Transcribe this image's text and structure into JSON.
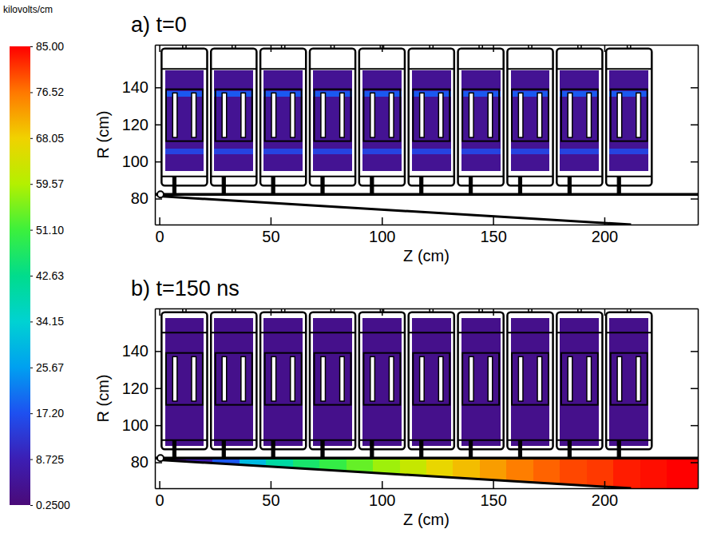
{
  "chart_data": {
    "type": "heatmap",
    "colorbar": {
      "label": "kilovolts/cm",
      "range": [
        0.25,
        85
      ],
      "ticks": [
        {
          "value": 0.25,
          "label": "0.2500"
        },
        {
          "value": 8.725,
          "label": "8.725"
        },
        {
          "value": 17.2,
          "label": "17.20"
        },
        {
          "value": 25.67,
          "label": "25.67"
        },
        {
          "value": 34.15,
          "label": "34.15"
        },
        {
          "value": 42.63,
          "label": "42.63"
        },
        {
          "value": 51.1,
          "label": "51.10"
        },
        {
          "value": 59.57,
          "label": "59.57"
        },
        {
          "value": 68.05,
          "label": "68.05"
        },
        {
          "value": 76.52,
          "label": "76.52"
        },
        {
          "value": 85,
          "label": "85.00"
        }
      ],
      "colors": [
        "#4a0a78",
        "#3c1eb4",
        "#1e50f0",
        "#00a0f0",
        "#00d2d2",
        "#00dc8c",
        "#3cf03c",
        "#b4f000",
        "#f0d200",
        "#ff7800",
        "#ff0000"
      ]
    },
    "panels": [
      {
        "type": "heatmap",
        "title": "a) t=0",
        "x_label": "Z (cm)",
        "y_label": "R (cm)",
        "xlim": [
          -2,
          242
        ],
        "ylim": [
          66,
          163
        ],
        "xticks": [
          0,
          50,
          100,
          150,
          200
        ],
        "yticks": [
          80,
          100,
          120,
          140
        ],
        "field": [
          {
            "z": [
              2.5,
              20
            ],
            "r": [
              95,
              149
            ],
            "value": 4
          },
          {
            "z": [
              2.5,
              20
            ],
            "r": [
              104,
              107
            ],
            "value": 15
          },
          {
            "z": [
              2.5,
              20
            ],
            "r": [
              135,
              138
            ],
            "value": 18
          },
          {
            "z": [
              24.7,
              42.2
            ],
            "r": [
              95,
              149
            ],
            "value": 4
          },
          {
            "z": [
              24.7,
              42.2
            ],
            "r": [
              104,
              107
            ],
            "value": 15
          },
          {
            "z": [
              24.7,
              42.2
            ],
            "r": [
              135,
              138
            ],
            "value": 18
          },
          {
            "z": [
              46.9,
              64.4
            ],
            "r": [
              95,
              149
            ],
            "value": 4
          },
          {
            "z": [
              46.9,
              64.4
            ],
            "r": [
              104,
              107
            ],
            "value": 15
          },
          {
            "z": [
              46.9,
              64.4
            ],
            "r": [
              135,
              138
            ],
            "value": 18
          },
          {
            "z": [
              69.1,
              86.6
            ],
            "r": [
              95,
              149
            ],
            "value": 4
          },
          {
            "z": [
              69.1,
              86.6
            ],
            "r": [
              104,
              107
            ],
            "value": 15
          },
          {
            "z": [
              69.1,
              86.6
            ],
            "r": [
              135,
              138
            ],
            "value": 18
          },
          {
            "z": [
              91.3,
              108.8
            ],
            "r": [
              95,
              149
            ],
            "value": 4
          },
          {
            "z": [
              91.3,
              108.8
            ],
            "r": [
              104,
              107
            ],
            "value": 15
          },
          {
            "z": [
              91.3,
              108.8
            ],
            "r": [
              135,
              138
            ],
            "value": 18
          },
          {
            "z": [
              113.5,
              131
            ],
            "r": [
              95,
              149
            ],
            "value": 4
          },
          {
            "z": [
              113.5,
              131
            ],
            "r": [
              104,
              107
            ],
            "value": 15
          },
          {
            "z": [
              113.5,
              131
            ],
            "r": [
              135,
              138
            ],
            "value": 18
          },
          {
            "z": [
              135.7,
              153.2
            ],
            "r": [
              95,
              149
            ],
            "value": 4
          },
          {
            "z": [
              135.7,
              153.2
            ],
            "r": [
              104,
              107
            ],
            "value": 15
          },
          {
            "z": [
              135.7,
              153.2
            ],
            "r": [
              135,
              138
            ],
            "value": 18
          },
          {
            "z": [
              157.9,
              175.4
            ],
            "r": [
              95,
              149
            ],
            "value": 4
          },
          {
            "z": [
              157.9,
              175.4
            ],
            "r": [
              104,
              107
            ],
            "value": 15
          },
          {
            "z": [
              157.9,
              175.4
            ],
            "r": [
              135,
              138
            ],
            "value": 18
          },
          {
            "z": [
              180.1,
              197.6
            ],
            "r": [
              95,
              149
            ],
            "value": 4
          },
          {
            "z": [
              180.1,
              197.6
            ],
            "r": [
              104,
              107
            ],
            "value": 15
          },
          {
            "z": [
              180.1,
              197.6
            ],
            "r": [
              135,
              138
            ],
            "value": 18
          },
          {
            "z": [
              202.3,
              219.8
            ],
            "r": [
              95,
              149
            ],
            "value": 4
          },
          {
            "z": [
              202.3,
              219.8
            ],
            "r": [
              104,
              107
            ],
            "value": 15
          },
          {
            "z": [
              202.3,
              219.8
            ],
            "r": [
              135,
              138
            ],
            "value": 18
          }
        ]
      },
      {
        "type": "heatmap",
        "title": "b) t=150 ns",
        "x_label": "Z (cm)",
        "y_label": "R (cm)",
        "xlim": [
          -2,
          242
        ],
        "ylim": [
          66,
          163
        ],
        "xticks": [
          0,
          50,
          100,
          150,
          200
        ],
        "yticks": [
          80,
          100,
          120,
          140
        ],
        "field": [
          {
            "z": [
              2.5,
              20
            ],
            "r": [
              89,
              158
            ],
            "value": 3
          },
          {
            "z": [
              24.7,
              42.2
            ],
            "r": [
              89,
              158
            ],
            "value": 3
          },
          {
            "z": [
              46.9,
              64.4
            ],
            "r": [
              89,
              158
            ],
            "value": 3
          },
          {
            "z": [
              69.1,
              86.6
            ],
            "r": [
              89,
              158
            ],
            "value": 3
          },
          {
            "z": [
              91.3,
              108.8
            ],
            "r": [
              89,
              158
            ],
            "value": 3
          },
          {
            "z": [
              113.5,
              131
            ],
            "r": [
              89,
              158
            ],
            "value": 3
          },
          {
            "z": [
              135.7,
              153.2
            ],
            "r": [
              89,
              158
            ],
            "value": 3
          },
          {
            "z": [
              157.9,
              175.4
            ],
            "r": [
              89,
              158
            ],
            "value": 3
          },
          {
            "z": [
              180.1,
              197.6
            ],
            "r": [
              89,
              158
            ],
            "value": 3
          },
          {
            "z": [
              202.3,
              219.8
            ],
            "r": [
              89,
              158
            ],
            "value": 3
          },
          {
            "z": [
              0,
              12
            ],
            "r": [
              66,
              82
            ],
            "value": 3
          },
          {
            "z": [
              12,
              24
            ],
            "r": [
              66,
              82
            ],
            "value": 8
          },
          {
            "z": [
              24,
              36
            ],
            "r": [
              66,
              82
            ],
            "value": 18
          },
          {
            "z": [
              36,
              48
            ],
            "r": [
              66,
              82
            ],
            "value": 30
          },
          {
            "z": [
              48,
              60
            ],
            "r": [
              66,
              82
            ],
            "value": 40
          },
          {
            "z": [
              60,
              72
            ],
            "r": [
              66,
              82
            ],
            "value": 46
          },
          {
            "z": [
              72,
              84
            ],
            "r": [
              66,
              82
            ],
            "value": 50
          },
          {
            "z": [
              84,
              96
            ],
            "r": [
              66,
              82
            ],
            "value": 54
          },
          {
            "z": [
              96,
              108
            ],
            "r": [
              66,
              82
            ],
            "value": 58
          },
          {
            "z": [
              108,
              120
            ],
            "r": [
              66,
              82
            ],
            "value": 62
          },
          {
            "z": [
              120,
              132
            ],
            "r": [
              66,
              82
            ],
            "value": 67
          },
          {
            "z": [
              132,
              144
            ],
            "r": [
              66,
              82
            ],
            "value": 70
          },
          {
            "z": [
              144,
              156
            ],
            "r": [
              66,
              82
            ],
            "value": 73
          },
          {
            "z": [
              156,
              168
            ],
            "r": [
              66,
              82
            ],
            "value": 76
          },
          {
            "z": [
              168,
              180
            ],
            "r": [
              66,
              82
            ],
            "value": 78
          },
          {
            "z": [
              180,
              192
            ],
            "r": [
              66,
              82
            ],
            "value": 80
          },
          {
            "z": [
              192,
              204
            ],
            "r": [
              66,
              82
            ],
            "value": 81
          },
          {
            "z": [
              204,
              216
            ],
            "r": [
              66,
              82
            ],
            "value": 83
          },
          {
            "z": [
              216,
              228
            ],
            "r": [
              66,
              82
            ],
            "value": 84
          },
          {
            "z": [
              228,
              242
            ],
            "r": [
              66,
              82
            ],
            "value": 85
          }
        ]
      }
    ]
  }
}
